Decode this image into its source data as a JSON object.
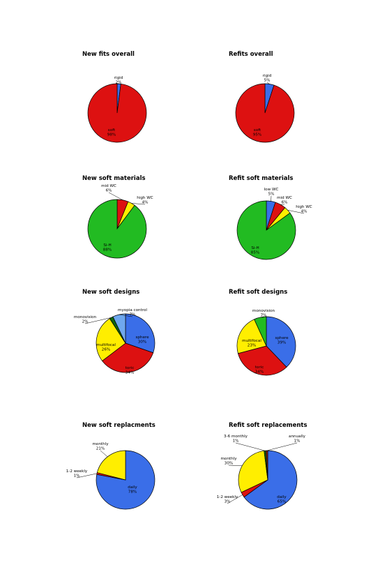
{
  "colors": {
    "red": "#dd1111",
    "blue": "#3a6ee8",
    "yellow": "#ffee00",
    "green": "#22bb22",
    "lightblue": "#6fa8ee",
    "darkgreen": "#116611",
    "darkred": "#882211"
  },
  "chart_data": [
    {
      "type": "pie",
      "title": "New fits overall",
      "slices": [
        {
          "name": "rigid",
          "value": 2,
          "pct_label": "2%",
          "color": "blue"
        },
        {
          "name": "soft",
          "value": 98,
          "pct_label": "98%",
          "color": "red"
        }
      ]
    },
    {
      "type": "pie",
      "title": "Refits overall",
      "slices": [
        {
          "name": "rigid",
          "value": 5,
          "pct_label": "5%",
          "color": "blue"
        },
        {
          "name": "soft",
          "value": 95,
          "pct_label": "95%",
          "color": "red"
        }
      ]
    },
    {
      "type": "pie",
      "title": "New soft materials",
      "slices": [
        {
          "name": "mid WC",
          "value": 6,
          "pct_label": "6%",
          "color": "red"
        },
        {
          "name": "high WC",
          "value": 4,
          "pct_label": "4%",
          "color": "yellow"
        },
        {
          "name": "Si-H",
          "value": 88,
          "pct_label": "88%",
          "color": "green"
        }
      ]
    },
    {
      "type": "pie",
      "title": "Refit soft materials",
      "slices": [
        {
          "name": "low WC",
          "value": 5,
          "pct_label": "5%",
          "color": "blue"
        },
        {
          "name": "mid WC",
          "value": 6,
          "pct_label": "6%",
          "color": "red"
        },
        {
          "name": "high WC",
          "value": 4,
          "pct_label": "4%",
          "color": "yellow"
        },
        {
          "name": "Si-H",
          "value": 85,
          "pct_label": "85%",
          "color": "green"
        }
      ]
    },
    {
      "type": "pie",
      "title": "New soft designs",
      "slices": [
        {
          "name": "sphere",
          "value": 30,
          "pct_label": "30%",
          "color": "blue"
        },
        {
          "name": "toric",
          "value": 34,
          "pct_label": "34%",
          "color": "red"
        },
        {
          "name": "multifocal",
          "value": 26,
          "pct_label": "26%",
          "color": "yellow"
        },
        {
          "name": "monovision",
          "value": 2,
          "pct_label": "2%",
          "color": "darkgreen"
        },
        {
          "name": "myopia control",
          "value": 7,
          "pct_label": "7%",
          "color": "lightblue"
        }
      ]
    },
    {
      "type": "pie",
      "title": "Refit soft designs",
      "slices": [
        {
          "name": "sphere",
          "value": 39,
          "pct_label": "39%",
          "color": "blue"
        },
        {
          "name": "toric",
          "value": 34,
          "pct_label": "34%",
          "color": "red"
        },
        {
          "name": "multifocal",
          "value": 23,
          "pct_label": "23%",
          "color": "yellow"
        },
        {
          "name": "monovision",
          "value": 7,
          "pct_label": "7%",
          "color": "green"
        }
      ]
    },
    {
      "type": "pie",
      "title": "New soft replacments",
      "slices": [
        {
          "name": "daily",
          "value": 78,
          "pct_label": "78%",
          "color": "blue"
        },
        {
          "name": "1-2 weekly",
          "value": 1,
          "pct_label": "1%",
          "color": "red"
        },
        {
          "name": "monthly",
          "value": 21,
          "pct_label": "21%",
          "color": "yellow"
        }
      ]
    },
    {
      "type": "pie",
      "title": "Refit soft replacements",
      "slices": [
        {
          "name": "daily",
          "value": 65,
          "pct_label": "65%",
          "color": "blue"
        },
        {
          "name": "1-2 weekly",
          "value": 3,
          "pct_label": "3%",
          "color": "red"
        },
        {
          "name": "monthly",
          "value": 30,
          "pct_label": "30%",
          "color": "yellow"
        },
        {
          "name": "3-6 monthly",
          "value": 1,
          "pct_label": "1%",
          "color": "darkgreen"
        },
        {
          "name": "annually",
          "value": 1,
          "pct_label": "1%",
          "color": "darkred"
        }
      ]
    }
  ]
}
